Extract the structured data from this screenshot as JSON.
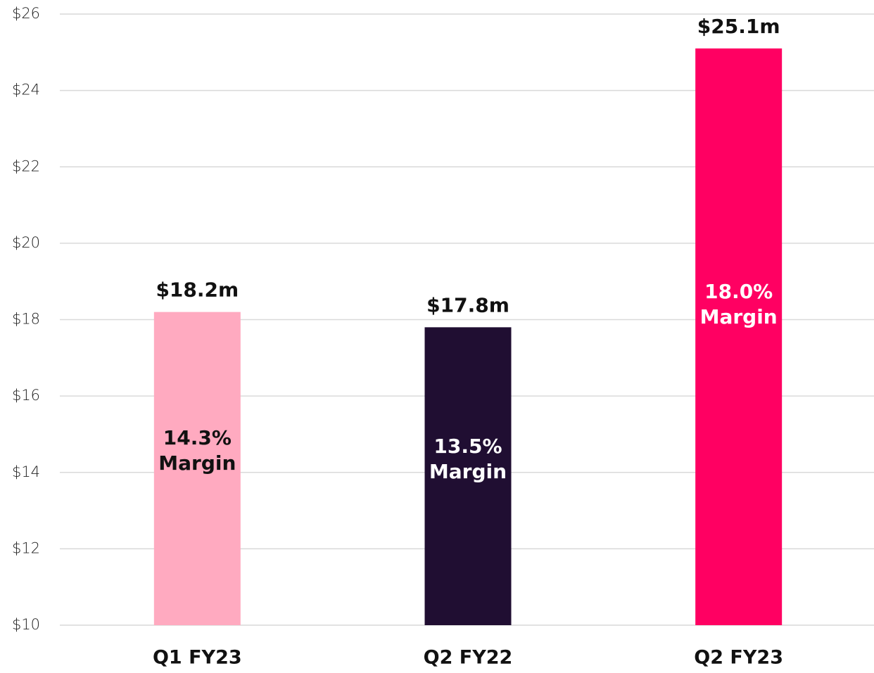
{
  "chart_data": {
    "type": "bar",
    "categories": [
      "Q1 FY23",
      "Q2 FY22",
      "Q2 FY23"
    ],
    "values": [
      18.2,
      17.8,
      25.1
    ],
    "value_labels": [
      "$18.2m",
      "$17.8m",
      "$25.1m"
    ],
    "colors": [
      "#ffaac0",
      "#200e32",
      "#ff0062"
    ],
    "annotations": [
      [
        "14.3%",
        "Margin"
      ],
      [
        "13.5%",
        "Margin"
      ],
      [
        "18.0%",
        "Margin"
      ]
    ],
    "annotation_colors": [
      "#111111",
      "#ffffff",
      "#ffffff"
    ],
    "ylim": [
      10,
      26
    ],
    "yticks": [
      {
        "value": 10,
        "label": "$10"
      },
      {
        "value": 12,
        "label": "$12"
      },
      {
        "value": 14,
        "label": "$14"
      },
      {
        "value": 16,
        "label": "$16"
      },
      {
        "value": 18,
        "label": "$18"
      },
      {
        "value": 20,
        "label": "$20"
      },
      {
        "value": 22,
        "label": "$22"
      },
      {
        "value": 24,
        "label": "$24"
      },
      {
        "value": 26,
        "label": "$26"
      }
    ],
    "grid": true
  }
}
